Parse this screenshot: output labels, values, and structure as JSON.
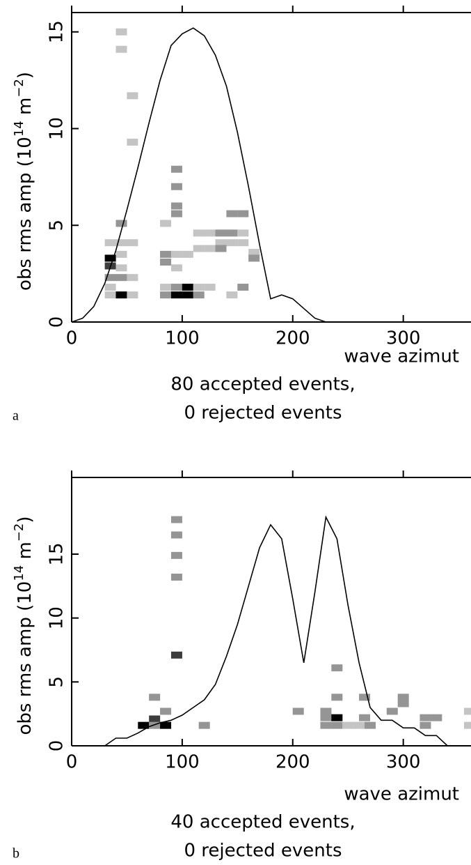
{
  "chart_data": [
    {
      "type": "histogram2d",
      "panel": "a",
      "ylabel": [
        "obs rms amp (10",
        "14",
        " m",
        "−2",
        ")"
      ],
      "xlabel": "wave azimut",
      "caption": [
        "80 accepted events,",
        "0 rejected events"
      ],
      "xlim": [
        0,
        360
      ],
      "ylim": [
        0,
        16
      ],
      "xticks": [
        0,
        100,
        200,
        300
      ],
      "yticks": [
        0,
        5,
        10,
        15
      ],
      "cell_colors": [
        "#c4c4c4",
        "#959595",
        "#3c3c3c",
        "#000000"
      ],
      "curve": {
        "x": [
          0,
          10,
          20,
          30,
          40,
          50,
          60,
          70,
          80,
          90,
          100,
          110,
          120,
          130,
          140,
          150,
          160,
          170,
          180,
          190,
          200,
          210,
          220,
          230,
          240
        ],
        "values": [
          0,
          0.2,
          0.8,
          2,
          3.7,
          5.8,
          8,
          10.3,
          12.5,
          14.3,
          14.9,
          15.2,
          14.8,
          13.8,
          12.2,
          9.8,
          7,
          4,
          1.2,
          1.4,
          1.2,
          0.7,
          0.2,
          0,
          0
        ]
      },
      "cells": {
        "x": [
          45,
          45,
          55,
          55,
          95,
          95,
          95,
          95,
          45,
          35,
          45,
          55,
          35,
          35,
          45,
          45,
          35,
          45,
          55,
          35,
          35,
          45,
          55,
          85,
          85,
          85,
          95,
          95,
          85,
          95,
          105,
          115,
          125,
          85,
          95,
          105,
          115,
          105,
          115,
          125,
          125,
          135,
          145,
          155,
          135,
          145,
          155,
          135,
          145,
          155,
          165,
          165,
          155,
          145,
          115
        ],
        "y": [
          15.0,
          14.1,
          11.7,
          9.3,
          7.9,
          7.0,
          6.0,
          5.6,
          5.1,
          4.1,
          4.1,
          4.1,
          3.3,
          2.9,
          3.5,
          2.8,
          2.3,
          2.3,
          2.3,
          1.8,
          1.4,
          1.4,
          1.4,
          5.1,
          3.5,
          3.1,
          3.5,
          2.8,
          1.8,
          1.8,
          1.8,
          1.8,
          1.8,
          1.4,
          1.4,
          1.4,
          1.4,
          3.5,
          3.8,
          3.8,
          4.6,
          4.6,
          4.6,
          4.6,
          4.1,
          4.1,
          4.1,
          3.8,
          5.6,
          5.6,
          3.6,
          3.3,
          1.8,
          1.4,
          4.6
        ],
        "counts": [
          1,
          1,
          1,
          1,
          2,
          2,
          2,
          2,
          2,
          1,
          1,
          1,
          4,
          3,
          1,
          1,
          2,
          2,
          1,
          1,
          1,
          4,
          1,
          1,
          2,
          2,
          1,
          1,
          1,
          2,
          4,
          1,
          1,
          2,
          4,
          4,
          2,
          1,
          1,
          1,
          1,
          2,
          2,
          1,
          1,
          1,
          1,
          2,
          2,
          2,
          1,
          2,
          2,
          1,
          1
        ]
      }
    },
    {
      "type": "histogram2d",
      "panel": "b",
      "ylabel": [
        "obs rms amp (10",
        "14",
        " m",
        "−2",
        ")"
      ],
      "xlabel": "wave azimut",
      "caption": [
        "40 accepted events,",
        "0 rejected events"
      ],
      "xlim": [
        0,
        360
      ],
      "ylim": [
        0,
        21
      ],
      "xticks": [
        0,
        100,
        200,
        300
      ],
      "yticks": [
        0,
        5,
        10,
        15
      ],
      "cell_colors": [
        "#c4c4c4",
        "#959595",
        "#3c3c3c",
        "#000000"
      ],
      "curve": {
        "x": [
          30,
          40,
          50,
          60,
          70,
          80,
          90,
          100,
          110,
          120,
          130,
          140,
          150,
          160,
          170,
          180,
          190,
          200,
          210,
          220,
          230,
          240,
          250,
          260,
          270,
          280,
          290,
          300,
          310,
          320,
          330,
          340
        ],
        "values": [
          0,
          0.6,
          0.6,
          1,
          1.5,
          1.8,
          2,
          2.4,
          3,
          3.6,
          4.8,
          7,
          9.5,
          12.5,
          15.5,
          17.3,
          16.2,
          11.5,
          6.5,
          12,
          17.9,
          16.2,
          11,
          6.5,
          3,
          2,
          2,
          1.4,
          1.4,
          0.8,
          0.8,
          0
        ]
      },
      "cells": {
        "x": [
          95,
          95,
          95,
          95,
          95,
          75,
          85,
          75,
          65,
          75,
          85,
          120,
          205,
          240,
          240,
          265,
          230,
          230,
          230,
          240,
          240,
          250,
          260,
          265,
          270,
          290,
          300,
          300,
          320,
          330,
          320,
          360,
          360
        ],
        "y": [
          17.7,
          16.5,
          14.9,
          13.2,
          7.1,
          3.8,
          2.7,
          2.1,
          1.6,
          1.6,
          1.6,
          1.6,
          2.7,
          6.1,
          3.8,
          3.8,
          2.7,
          2.2,
          1.6,
          2.2,
          1.6,
          1.6,
          1.6,
          2.2,
          1.6,
          2.7,
          3.8,
          3.3,
          2.2,
          2.2,
          1.6,
          2.7,
          1.6
        ],
        "counts": [
          2,
          2,
          2,
          2,
          3,
          2,
          2,
          3,
          4,
          2,
          4,
          2,
          2,
          2,
          2,
          2,
          2,
          2,
          2,
          4,
          2,
          1,
          1,
          2,
          2,
          2,
          2,
          2,
          2,
          2,
          2,
          1,
          1
        ]
      }
    }
  ]
}
